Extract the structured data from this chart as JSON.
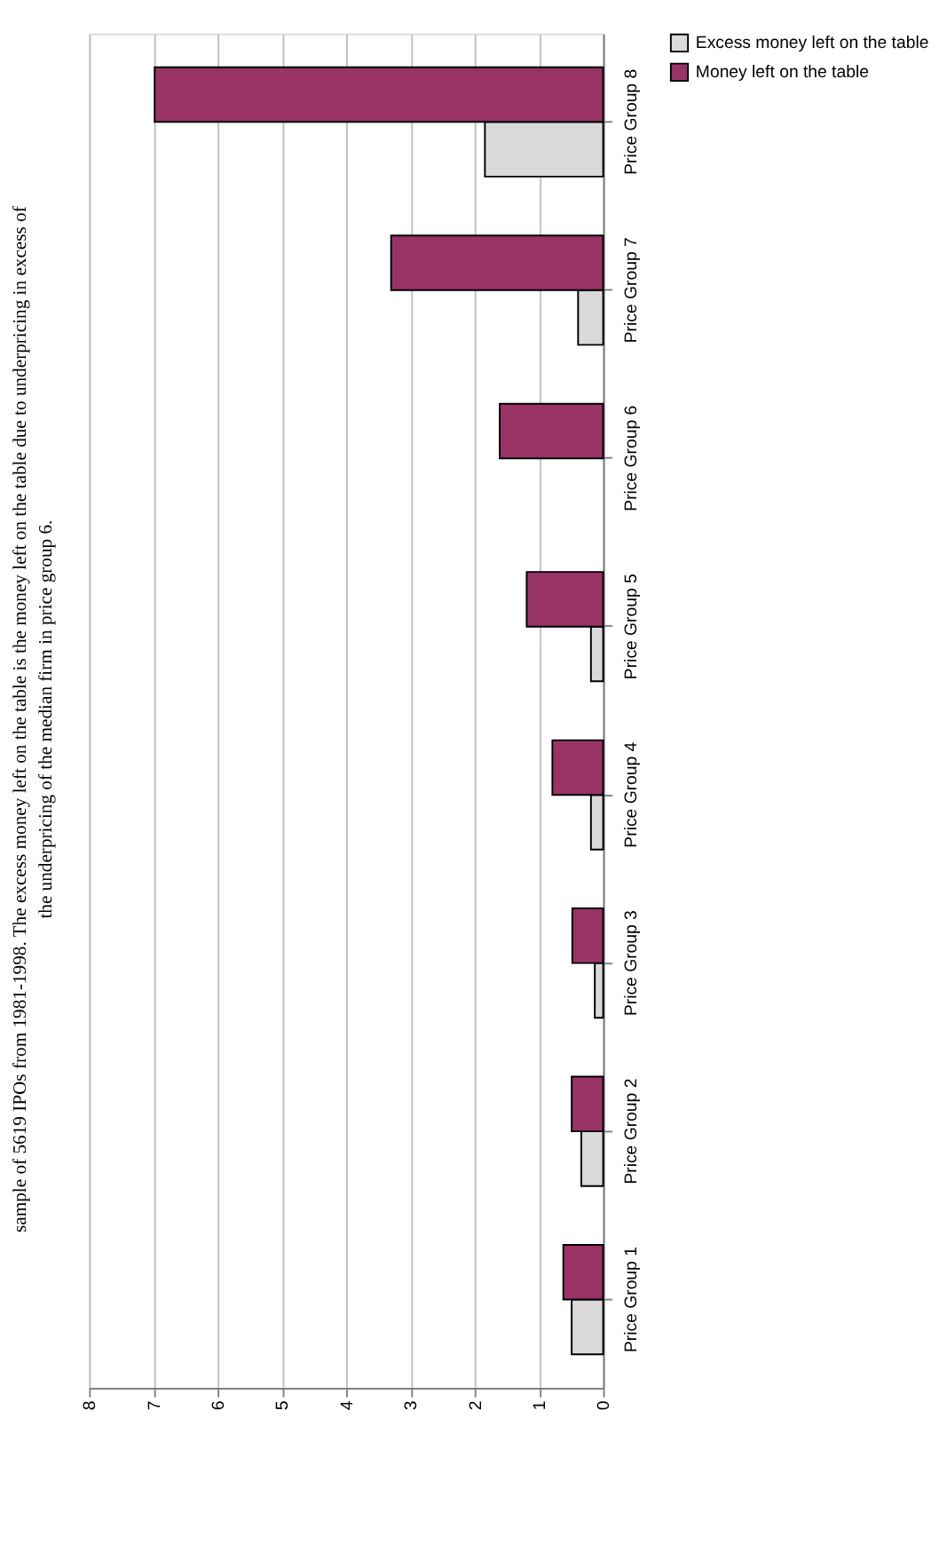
{
  "chart_data": {
    "type": "bar",
    "orientation": "horizontal",
    "annotations": [
      "sample of 5619 IPOs from 1981-1998. The excess money left on the table is the money left on the table due to underpricing in excess of",
      "the underpricing of the median firm in price group 6."
    ],
    "categories": [
      "Price Group 8",
      "Price Group 7",
      "Price Group 6",
      "Price Group 5",
      "Price Group 4",
      "Price Group 3",
      "Price Group 2",
      "Price Group 1"
    ],
    "series": [
      {
        "name": "Excess money left on the table",
        "color": "#d9d9d9",
        "values": [
          1.84,
          0.39,
          null,
          0.19,
          0.19,
          0.13,
          0.34,
          0.49
        ]
      },
      {
        "name": "Money left on the table",
        "color": "#993366",
        "values": [
          6.98,
          3.3,
          1.61,
          1.19,
          0.79,
          0.48,
          0.49,
          0.62
        ]
      }
    ],
    "xlim": [
      8,
      0
    ],
    "xticks": [
      0,
      1,
      2,
      3,
      4,
      5,
      6,
      7,
      8
    ],
    "grid": "x",
    "legend": "right"
  }
}
